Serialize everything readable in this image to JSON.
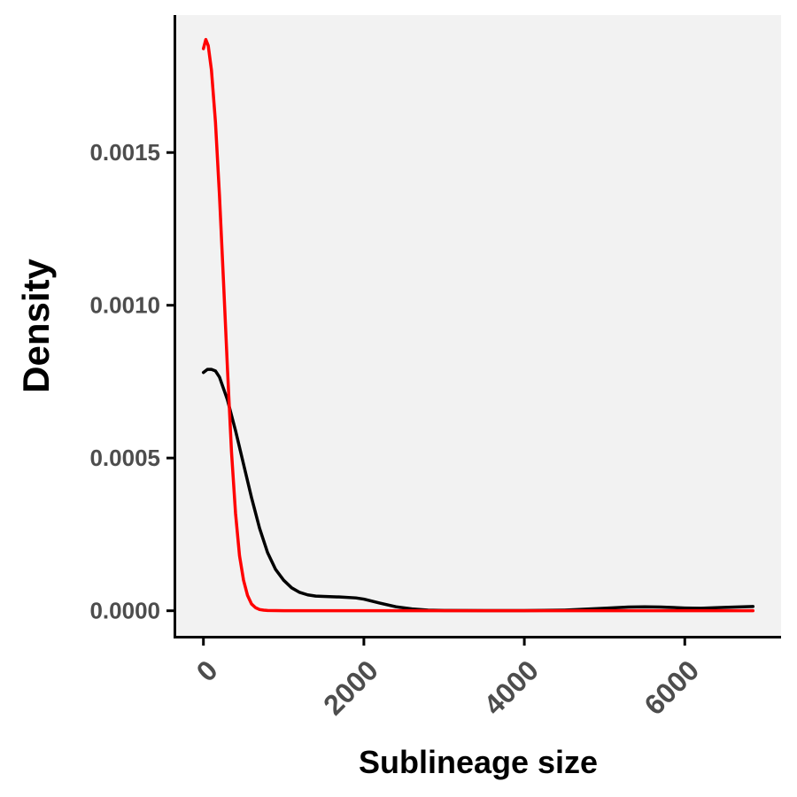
{
  "chart_data": {
    "type": "line",
    "title": "",
    "xlabel": "Sublineage size",
    "ylabel": "Density",
    "xlim": [
      -350,
      7200
    ],
    "ylim": [
      -8.5e-05,
      0.00195
    ],
    "x_ticks": [
      0,
      2000,
      4000,
      6000
    ],
    "x_tick_labels": [
      "0",
      "2000",
      "4000",
      "6000"
    ],
    "y_ticks": [
      0.0,
      0.0005,
      0.001,
      0.0015
    ],
    "y_tick_labels": [
      "0.0000",
      "0.0005",
      "0.0010",
      "0.0015"
    ],
    "grid": false,
    "legend": "none",
    "colors": {
      "panel_background": "#f2f2f2",
      "axis_line": "#000000"
    },
    "series": [
      {
        "color": "#000000",
        "x": [
          0,
          50,
          100,
          150,
          200,
          300,
          400,
          500,
          600,
          700,
          800,
          900,
          1000,
          1100,
          1200,
          1300,
          1400,
          1500,
          1700,
          1900,
          2000,
          2200,
          2400,
          2600,
          2800,
          3000,
          3500,
          4000,
          4500,
          5000,
          5300,
          5500,
          5700,
          6000,
          6200,
          6500,
          6850
        ],
        "y": [
          0.00078,
          0.00079,
          0.00079,
          0.000785,
          0.000765,
          0.00069,
          0.00059,
          0.00048,
          0.00037,
          0.00027,
          0.00019,
          0.000135,
          0.0001,
          7.5e-05,
          6e-05,
          5.2e-05,
          4.8e-05,
          4.7e-05,
          4.5e-05,
          4.2e-05,
          3.8e-05,
          2.5e-05,
          1.3e-05,
          6e-06,
          2e-06,
          1e-06,
          5e-07,
          5e-07,
          2e-06,
          8e-06,
          1.2e-05,
          1.3e-05,
          1.2e-05,
          9e-06,
          8e-06,
          1.1e-05,
          1.4e-05
        ]
      },
      {
        "color": "#ff0000",
        "x": [
          0,
          30,
          60,
          100,
          150,
          200,
          250,
          300,
          350,
          400,
          450,
          500,
          550,
          600,
          650,
          700,
          750,
          800,
          900,
          1000,
          1500,
          2000,
          3000,
          4000,
          5000,
          6000,
          6850
        ],
        "y": [
          0.00184,
          0.00187,
          0.00185,
          0.00177,
          0.0016,
          0.00136,
          0.00108,
          0.00079,
          0.00052,
          0.00032,
          0.00018,
          0.0001,
          5e-05,
          2.2e-05,
          1e-05,
          4e-06,
          2e-06,
          1e-06,
          5e-07,
          0.0,
          0.0,
          0.0,
          0.0,
          0.0,
          0.0,
          0.0,
          0.0
        ]
      }
    ]
  }
}
